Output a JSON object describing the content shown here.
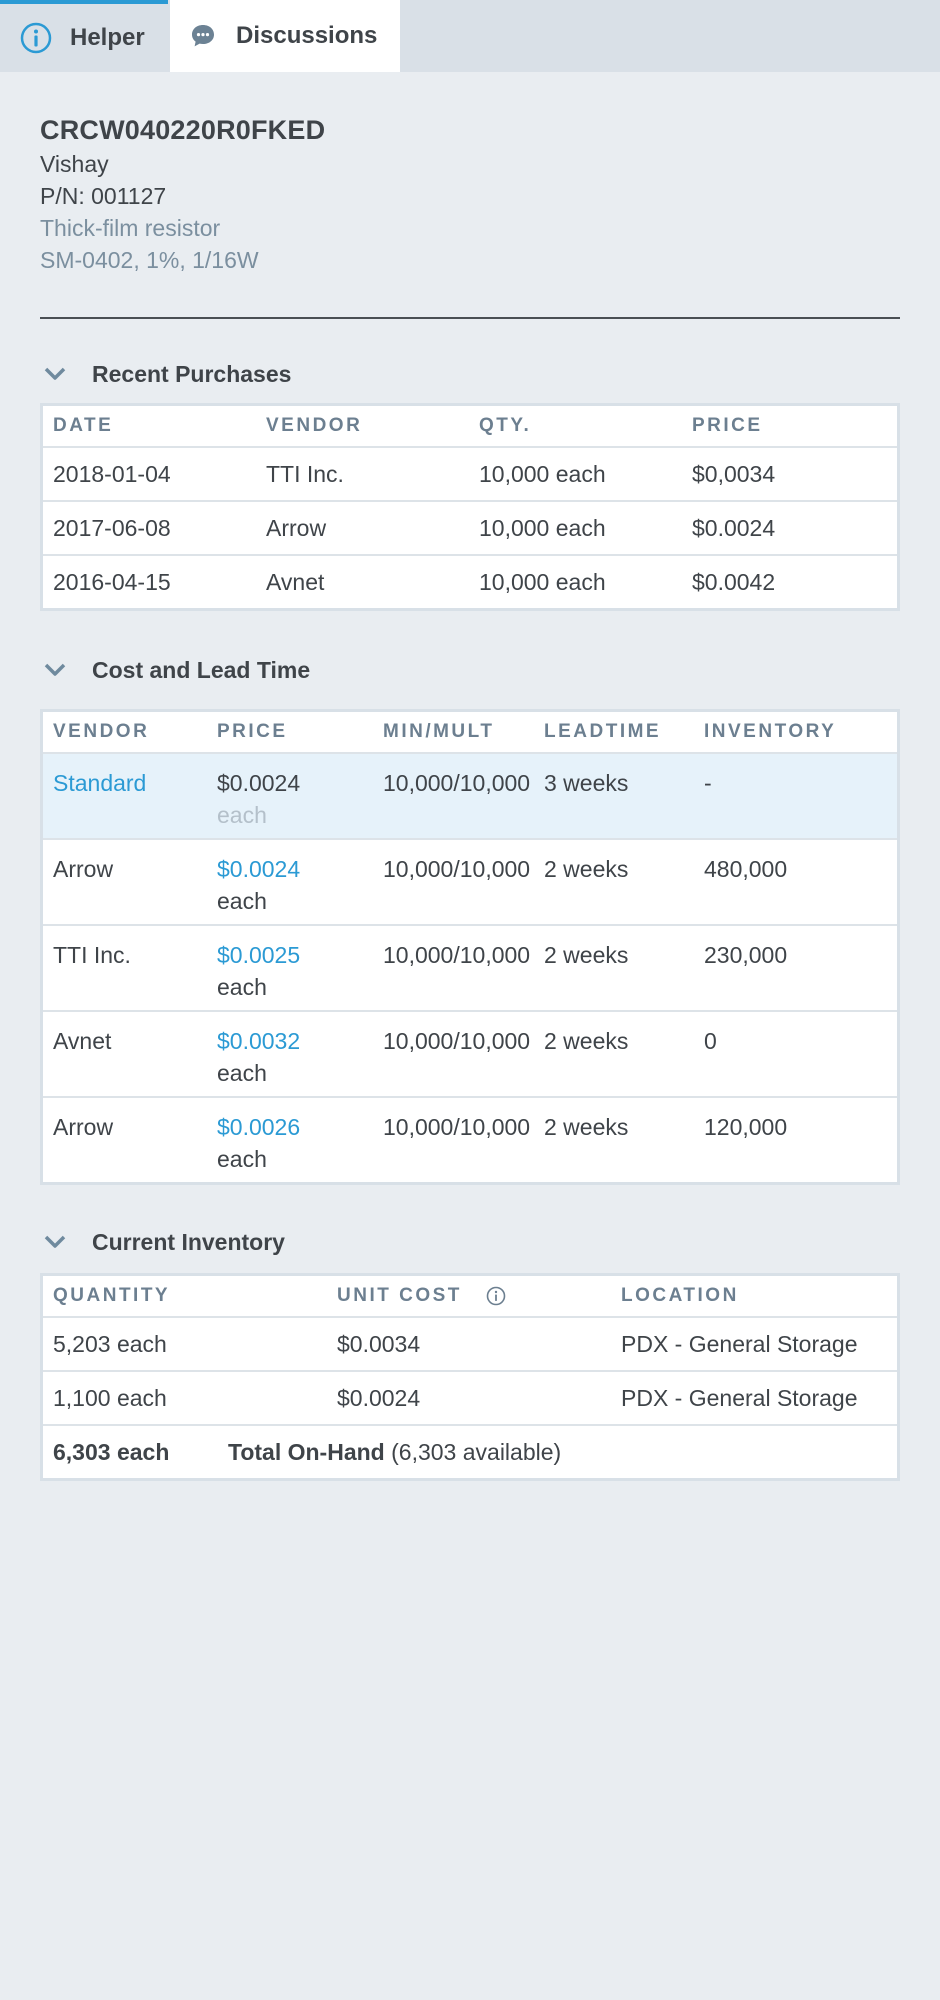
{
  "tabs": {
    "helper": "Helper",
    "discussions": "Discussions"
  },
  "part": {
    "number": "CRCW040220R0FKED",
    "manufacturer": "Vishay",
    "pn": "P/N: 001127",
    "type": "Thick-film resistor",
    "spec": "SM-0402, 1%, 1/16W"
  },
  "recent_purchases": {
    "title": "Recent Purchases",
    "headers": [
      "DATE",
      "VENDOR",
      "QTY.",
      "PRICE"
    ],
    "rows": [
      [
        "2018-01-04",
        "TTI Inc.",
        "10,000 each",
        "$0,0034"
      ],
      [
        "2017-06-08",
        "Arrow",
        "10,000 each",
        "$0.0024"
      ],
      [
        "2016-04-15",
        "Avnet",
        "10,000 each",
        "$0.0042"
      ]
    ]
  },
  "cost_lead": {
    "title": "Cost and Lead Time",
    "headers": [
      "VENDOR",
      "PRICE",
      "MIN/MULT",
      "LEADTIME",
      "INVENTORY"
    ],
    "rows": [
      {
        "vendor": "Standard",
        "price": "$0.0024",
        "unit": "each",
        "minmult": "10,000/10,000",
        "lead": "3 weeks",
        "inventory": "-"
      },
      {
        "vendor": "Arrow",
        "price": "$0.0024",
        "unit": "each",
        "minmult": "10,000/10,000",
        "lead": "2 weeks",
        "inventory": "480,000"
      },
      {
        "vendor": "TTI Inc.",
        "price": "$0.0025",
        "unit": "each",
        "minmult": "10,000/10,000",
        "lead": "2 weeks",
        "inventory": "230,000"
      },
      {
        "vendor": "Avnet",
        "price": "$0.0032",
        "unit": "each",
        "minmult": "10,000/10,000",
        "lead": "2 weeks",
        "inventory": "0"
      },
      {
        "vendor": "Arrow",
        "price": "$0.0026",
        "unit": "each",
        "minmult": "10,000/10,000",
        "lead": "2 weeks",
        "inventory": "120,000"
      }
    ]
  },
  "current_inventory": {
    "title": "Current Inventory",
    "headers": [
      "QUANTITY",
      "UNIT COST",
      "LOCATION"
    ],
    "rows": [
      [
        "5,203 each",
        "$0.0034",
        "PDX - General Storage"
      ],
      [
        "1,100 each",
        "$0.0024",
        "PDX - General Storage"
      ]
    ],
    "total_qty": "6,303 each",
    "total_label": "Total On-Hand",
    "total_available": "(6,303 available)"
  },
  "colors": {
    "accent": "#2b9ad4",
    "background": "#e9edf1",
    "header_text": "#6c7f90"
  },
  "icons": [
    "info-circle-icon",
    "chat-bubble-icon",
    "chevron-down-icon"
  ]
}
